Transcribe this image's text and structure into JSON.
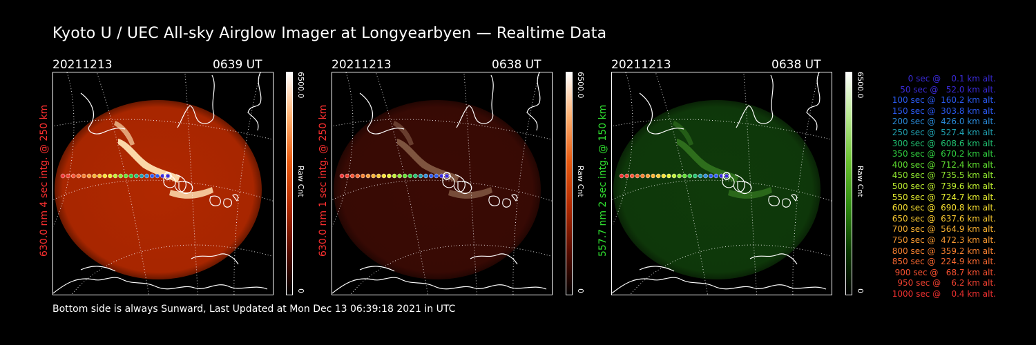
{
  "title": "Kyoto U / UEC All-sky Airglow Imager at Longyearbyen — Realtime Data",
  "footer": "Bottom side is always Sunward, Last Updated at Mon Dec 13 06:39:18 2021 in UTC",
  "panels": [
    {
      "date": "20211213",
      "time": "0639 UT",
      "side_label": "630.0 nm 4 sec intg. @ 250 km",
      "label_color": "#ff3030",
      "cbar_max": "6500.0",
      "cbar_min": "0",
      "cbar_unit": "Raw Cnt",
      "cbar_colors": [
        "#000000",
        "#5a0c00",
        "#b22a00",
        "#e85a10",
        "#ffb070",
        "#ffffff"
      ],
      "image_color": "#b02800",
      "brightness": "high"
    },
    {
      "date": "20211213",
      "time": "0638 UT",
      "side_label": "630.0 nm 1 sec intg. @ 250 km",
      "label_color": "#ff3030",
      "cbar_max": "6500.0",
      "cbar_min": "0",
      "cbar_unit": "Raw Cnt",
      "cbar_colors": [
        "#000000",
        "#5a0c00",
        "#b22a00",
        "#e85a10",
        "#ffb070",
        "#ffffff"
      ],
      "image_color": "#3a0a04",
      "brightness": "low"
    },
    {
      "date": "20211213",
      "time": "0638 UT",
      "side_label": "557.7 nm 2 sec intg. @ 150 km",
      "label_color": "#30e030",
      "cbar_max": "6500.0",
      "cbar_min": "0",
      "cbar_unit": "Raw Cnt",
      "cbar_colors": [
        "#000000",
        "#0a3a00",
        "#2e8a10",
        "#6ac030",
        "#b8e890",
        "#ffffff"
      ],
      "image_color": "#0f3a0a",
      "brightness": "low"
    }
  ],
  "legend": [
    {
      "text": "   0 sec @    0.1 km alt.",
      "color": "#3a2ad8"
    },
    {
      "text": "  50 sec @   52.0 km alt.",
      "color": "#3a2ad8"
    },
    {
      "text": " 100 sec @  160.2 km alt.",
      "color": "#2a5af0"
    },
    {
      "text": " 150 sec @  303.8 km alt.",
      "color": "#2a5af0"
    },
    {
      "text": " 200 sec @  426.0 km alt.",
      "color": "#2a8ad8"
    },
    {
      "text": " 250 sec @  527.4 km alt.",
      "color": "#20a0b0"
    },
    {
      "text": " 300 sec @  608.6 km alt.",
      "color": "#20c070"
    },
    {
      "text": " 350 sec @  670.2 km alt.",
      "color": "#30d040"
    },
    {
      "text": " 400 sec @  712.4 km alt.",
      "color": "#60e030"
    },
    {
      "text": " 450 sec @  735.5 km alt.",
      "color": "#90e830"
    },
    {
      "text": " 500 sec @  739.6 km alt.",
      "color": "#c0f030"
    },
    {
      "text": " 550 sec @  724.7 km alt.",
      "color": "#e8f030"
    },
    {
      "text": " 600 sec @  690.8 km alt.",
      "color": "#f8e030"
    },
    {
      "text": " 650 sec @  637.6 km alt.",
      "color": "#f8c830"
    },
    {
      "text": " 700 sec @  564.9 km alt.",
      "color": "#f8b030"
    },
    {
      "text": " 750 sec @  472.3 km alt.",
      "color": "#f89830"
    },
    {
      "text": " 800 sec @  359.2 km alt.",
      "color": "#f88030"
    },
    {
      "text": " 850 sec @  224.9 km alt.",
      "color": "#f86830"
    },
    {
      "text": " 900 sec @   68.7 km alt.",
      "color": "#f85030"
    },
    {
      "text": " 950 sec @    6.2 km alt.",
      "color": "#f04030"
    },
    {
      "text": "1000 sec @    0.4 km alt.",
      "color": "#f03030"
    }
  ]
}
